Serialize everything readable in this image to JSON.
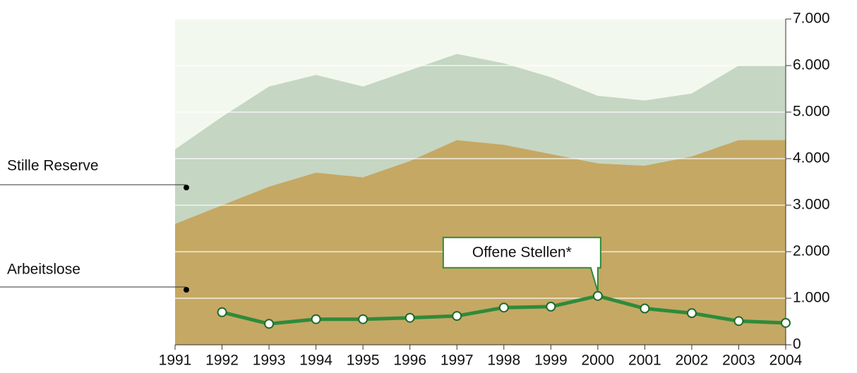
{
  "chart_data": {
    "type": "area",
    "stacked": true,
    "grid": true,
    "x": [
      1991,
      1992,
      1993,
      1994,
      1995,
      1996,
      1997,
      1998,
      1999,
      2000,
      2001,
      2002,
      2003,
      2004
    ],
    "xlim": [
      1991,
      2004
    ],
    "ylim": [
      0,
      7000
    ],
    "yticks": [
      0,
      {
        "value": 1000,
        "label": "1.000"
      },
      {
        "value": 2000,
        "label": "2.000"
      },
      {
        "value": 3000,
        "label": "3.000"
      },
      {
        "value": 4000,
        "label": "4.000"
      },
      {
        "value": 5000,
        "label": "5.000"
      },
      {
        "value": 6000,
        "label": "6.000"
      },
      {
        "value": 7000,
        "label": "7.000"
      }
    ],
    "series": [
      {
        "name": "Arbeitslose",
        "type": "area",
        "color": "#c5a863",
        "values": [
          2600,
          3000,
          3400,
          3700,
          3600,
          3950,
          4400,
          4300,
          4100,
          3900,
          3850,
          4050,
          4400,
          4400
        ]
      },
      {
        "name": "Stille Reserve",
        "type": "area",
        "color": "#c5d6c3",
        "values": [
          1600,
          1900,
          2150,
          2100,
          1950,
          1950,
          1850,
          1750,
          1650,
          1450,
          1400,
          1350,
          1600,
          1600
        ]
      },
      {
        "name": "Offene Stellen*",
        "type": "line",
        "color": "#2e8b3a",
        "values": [
          null,
          700,
          450,
          550,
          550,
          580,
          620,
          800,
          820,
          1050,
          780,
          680,
          510,
          470
        ]
      }
    ]
  }
}
